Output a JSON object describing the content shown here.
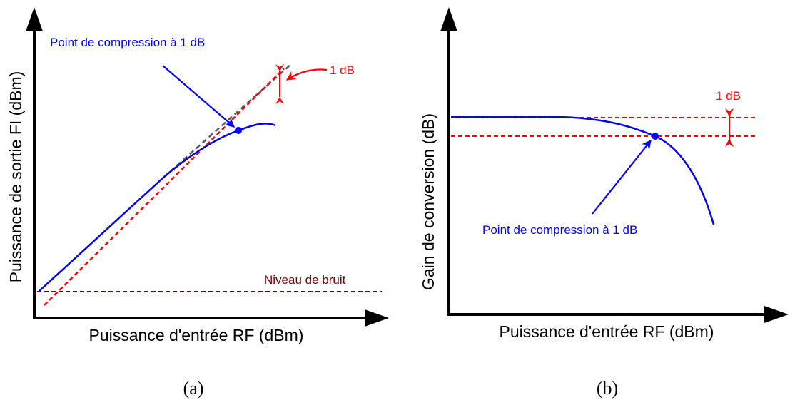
{
  "panel_a": {
    "x_axis_label": "Puissance d'entrée RF (dBm)",
    "y_axis_label": "Puissance de sortie FI (dBm)",
    "annotation_compression": "Point de compression à 1 dB",
    "annotation_1db": "1 dB",
    "annotation_noise": "Niveau de bruit",
    "caption": "(a)"
  },
  "panel_b": {
    "x_axis_label": "Puissance d'entrée RF (dBm)",
    "y_axis_label": "Gain de conversion (dB)",
    "annotation_compression": "Point de compression à 1 dB",
    "annotation_1db": "1 dB",
    "caption": "(b)"
  },
  "colors": {
    "axis": "#000000",
    "curve": "#0000ff",
    "reference": "#ff0000",
    "extrapolation": "#555555",
    "noise": "#800000"
  }
}
